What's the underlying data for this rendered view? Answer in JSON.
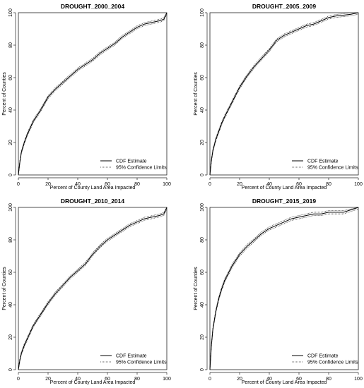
{
  "chart_data": [
    {
      "type": "line",
      "title": "DROUGHT_2000_2004",
      "xlabel": "Percent of County Land Area Impacted",
      "ylabel": "Percent of Counties",
      "xlim": [
        0,
        100
      ],
      "ylim": [
        0,
        100
      ],
      "xticks": [
        0,
        20,
        40,
        60,
        80,
        100
      ],
      "yticks": [
        0,
        20,
        40,
        60,
        80,
        100
      ],
      "grid": false,
      "legend_position": "bottom-right",
      "series": [
        {
          "name": "CDF Estimate",
          "style": "solid",
          "x": [
            0,
            1,
            2,
            4,
            6,
            8,
            10,
            15,
            20,
            25,
            30,
            35,
            40,
            45,
            50,
            55,
            60,
            65,
            70,
            75,
            80,
            85,
            90,
            95,
            98,
            100
          ],
          "y": [
            0,
            8,
            14,
            20,
            25,
            29,
            33,
            40,
            48,
            53,
            57,
            61,
            65,
            68,
            71,
            75,
            78,
            81,
            85,
            88,
            91,
            93,
            94,
            95,
            96,
            100
          ]
        },
        {
          "name": "95% Confidence Limits",
          "style": "dotted",
          "band": 0.9
        }
      ]
    },
    {
      "type": "line",
      "title": "DROUGHT_2005_2009",
      "xlabel": "Percent of County Land Area Impacted",
      "ylabel": "Percent of Counties",
      "xlim": [
        0,
        100
      ],
      "ylim": [
        0,
        100
      ],
      "xticks": [
        0,
        20,
        40,
        60,
        80,
        100
      ],
      "yticks": [
        0,
        20,
        40,
        60,
        80,
        100
      ],
      "grid": false,
      "legend_position": "bottom-right",
      "series": [
        {
          "name": "CDF Estimate",
          "style": "solid",
          "x": [
            0,
            1,
            2,
            4,
            6,
            8,
            10,
            15,
            20,
            25,
            30,
            35,
            40,
            45,
            50,
            55,
            60,
            65,
            70,
            75,
            80,
            85,
            90,
            95,
            100
          ],
          "y": [
            0,
            9,
            15,
            22,
            27,
            32,
            36,
            45,
            54,
            61,
            67,
            72,
            77,
            83,
            86,
            88,
            90,
            92,
            93,
            95,
            97,
            98,
            98.5,
            99,
            100
          ]
        },
        {
          "name": "95% Confidence Limits",
          "style": "dotted",
          "band": 0.9
        }
      ]
    },
    {
      "type": "line",
      "title": "DROUGHT_2010_2014",
      "xlabel": "Percent of County Land Area Impacted",
      "ylabel": "Percent of Counties",
      "xlim": [
        0,
        100
      ],
      "ylim": [
        0,
        100
      ],
      "xticks": [
        0,
        20,
        40,
        60,
        80,
        100
      ],
      "yticks": [
        0,
        20,
        40,
        60,
        80,
        100
      ],
      "grid": false,
      "legend_position": "bottom-right",
      "series": [
        {
          "name": "CDF Estimate",
          "style": "solid",
          "x": [
            0,
            1,
            2,
            4,
            6,
            8,
            10,
            15,
            20,
            25,
            30,
            35,
            40,
            45,
            50,
            55,
            60,
            65,
            70,
            75,
            80,
            85,
            90,
            95,
            98,
            100
          ],
          "y": [
            0,
            6,
            10,
            15,
            19,
            23,
            27,
            34,
            41,
            47,
            52,
            57,
            61,
            65,
            71,
            76,
            80,
            83,
            86,
            89,
            91,
            93,
            94,
            95,
            96,
            100
          ]
        },
        {
          "name": "95% Confidence Limits",
          "style": "dotted",
          "band": 0.9
        }
      ]
    },
    {
      "type": "line",
      "title": "DROUGHT_2015_2019",
      "xlabel": "Percent of County Land Area Impacted",
      "ylabel": "Percent of Counties",
      "xlim": [
        0,
        100
      ],
      "ylim": [
        0,
        100
      ],
      "xticks": [
        0,
        20,
        40,
        60,
        80,
        100
      ],
      "yticks": [
        0,
        20,
        40,
        60,
        80,
        100
      ],
      "grid": false,
      "legend_position": "bottom-right",
      "series": [
        {
          "name": "CDF Estimate",
          "style": "solid",
          "x": [
            0,
            1,
            2,
            4,
            6,
            8,
            10,
            15,
            20,
            25,
            30,
            35,
            40,
            45,
            50,
            55,
            60,
            65,
            70,
            75,
            80,
            90,
            100
          ],
          "y": [
            0,
            15,
            25,
            36,
            44,
            50,
            55,
            64,
            71,
            76,
            80,
            84,
            87,
            89,
            91,
            93,
            94,
            95,
            96,
            96,
            97,
            97,
            100
          ]
        },
        {
          "name": "95% Confidence Limits",
          "style": "dotted",
          "band": 1.0
        }
      ]
    }
  ]
}
